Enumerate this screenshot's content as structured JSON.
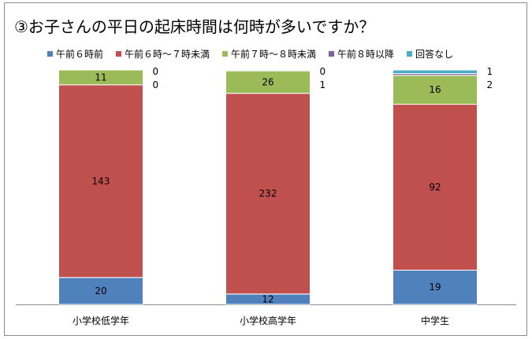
{
  "title": "③お子さんの平日の起床時間は何時が多いですか？",
  "legend_aria": "凡例",
  "chart_data": {
    "type": "bar",
    "stacked": true,
    "categories": [
      "小学校低学年",
      "小学校高学年",
      "中学生"
    ],
    "series": [
      {
        "name": "午前６時前",
        "color": "#4f81bd",
        "values": [
          20,
          12,
          19
        ]
      },
      {
        "name": "午前６時～７時未満",
        "color": "#c0504d",
        "values": [
          143,
          232,
          92
        ]
      },
      {
        "name": "午前７時～８時未満",
        "color": "#9bbb59",
        "values": [
          11,
          26,
          16
        ]
      },
      {
        "name": "午前８時以降",
        "color": "#8064a2",
        "values": [
          0,
          0,
          1
        ]
      },
      {
        "name": "回答なし",
        "color": "#4bacc6",
        "values": [
          0,
          1,
          2
        ]
      }
    ],
    "grid": false,
    "legend_position": "top"
  }
}
